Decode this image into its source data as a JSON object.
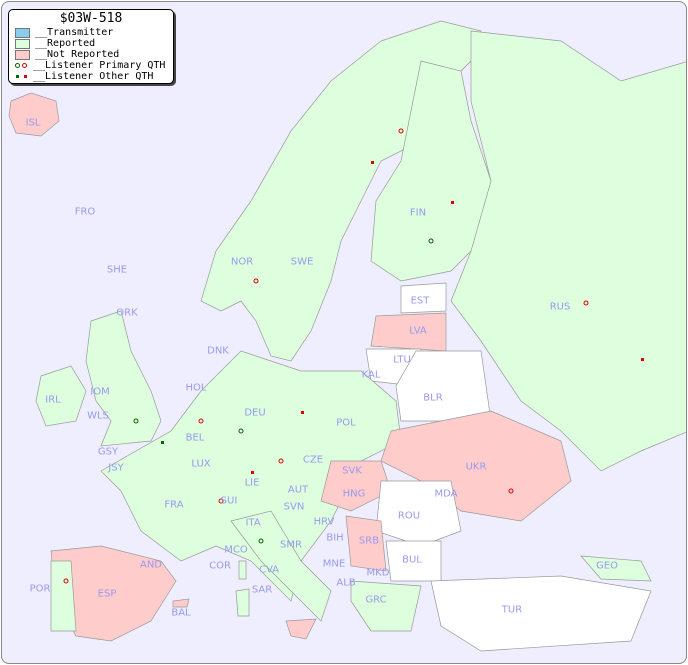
{
  "legend": {
    "title": "$03W-518",
    "items": [
      {
        "label": "__Transmitter",
        "color": "#88ccee"
      },
      {
        "label": "__Reported",
        "color": "#ddffdd"
      },
      {
        "label": "__Not Reported",
        "color": "#ffcccc"
      },
      {
        "label": "__Listener Primary QTH",
        "colors": [
          "#006600",
          "#dd0000"
        ],
        "icon": "open-circle"
      },
      {
        "label": "__Listener Other QTH",
        "colors": [
          "#006600",
          "#dd0000"
        ],
        "icon": "filled-square"
      }
    ]
  },
  "colors": {
    "sea": "#eeeeff",
    "reported": "#ddffdd",
    "not_reported": "#ffcccc",
    "no_data": "#ffffff",
    "label": "#9999ee"
  },
  "countries": {
    "not_reported": [
      "ISL",
      "LVA",
      "ESP",
      "UKR",
      "SVK",
      "HNG",
      "SRB",
      "BIH"
    ],
    "labels": [
      "ISL",
      "FRO",
      "SHE",
      "ORK",
      "NOR",
      "SWE",
      "FIN",
      "EST",
      "LVA",
      "LTU",
      "KAL",
      "RUS",
      "DNK",
      "HOL",
      "IRL",
      "IOM",
      "WLS",
      "BEL",
      "DEU",
      "POL",
      "BLR",
      "UKR",
      "GSY",
      "JSY",
      "LUX",
      "CZE",
      "SVK",
      "HNG",
      "AUT",
      "LIE",
      "SUI",
      "FRA",
      "MDA",
      "ROU",
      "SVN",
      "HRV",
      "BIH",
      "SRB",
      "ITA",
      "SMR",
      "MCO",
      "COR",
      "CVA",
      "MNE",
      "BUL",
      "MKD",
      "ALB",
      "GEO",
      "AND",
      "POR",
      "ESP",
      "BAL",
      "SAR",
      "GRC",
      "TUR"
    ]
  }
}
